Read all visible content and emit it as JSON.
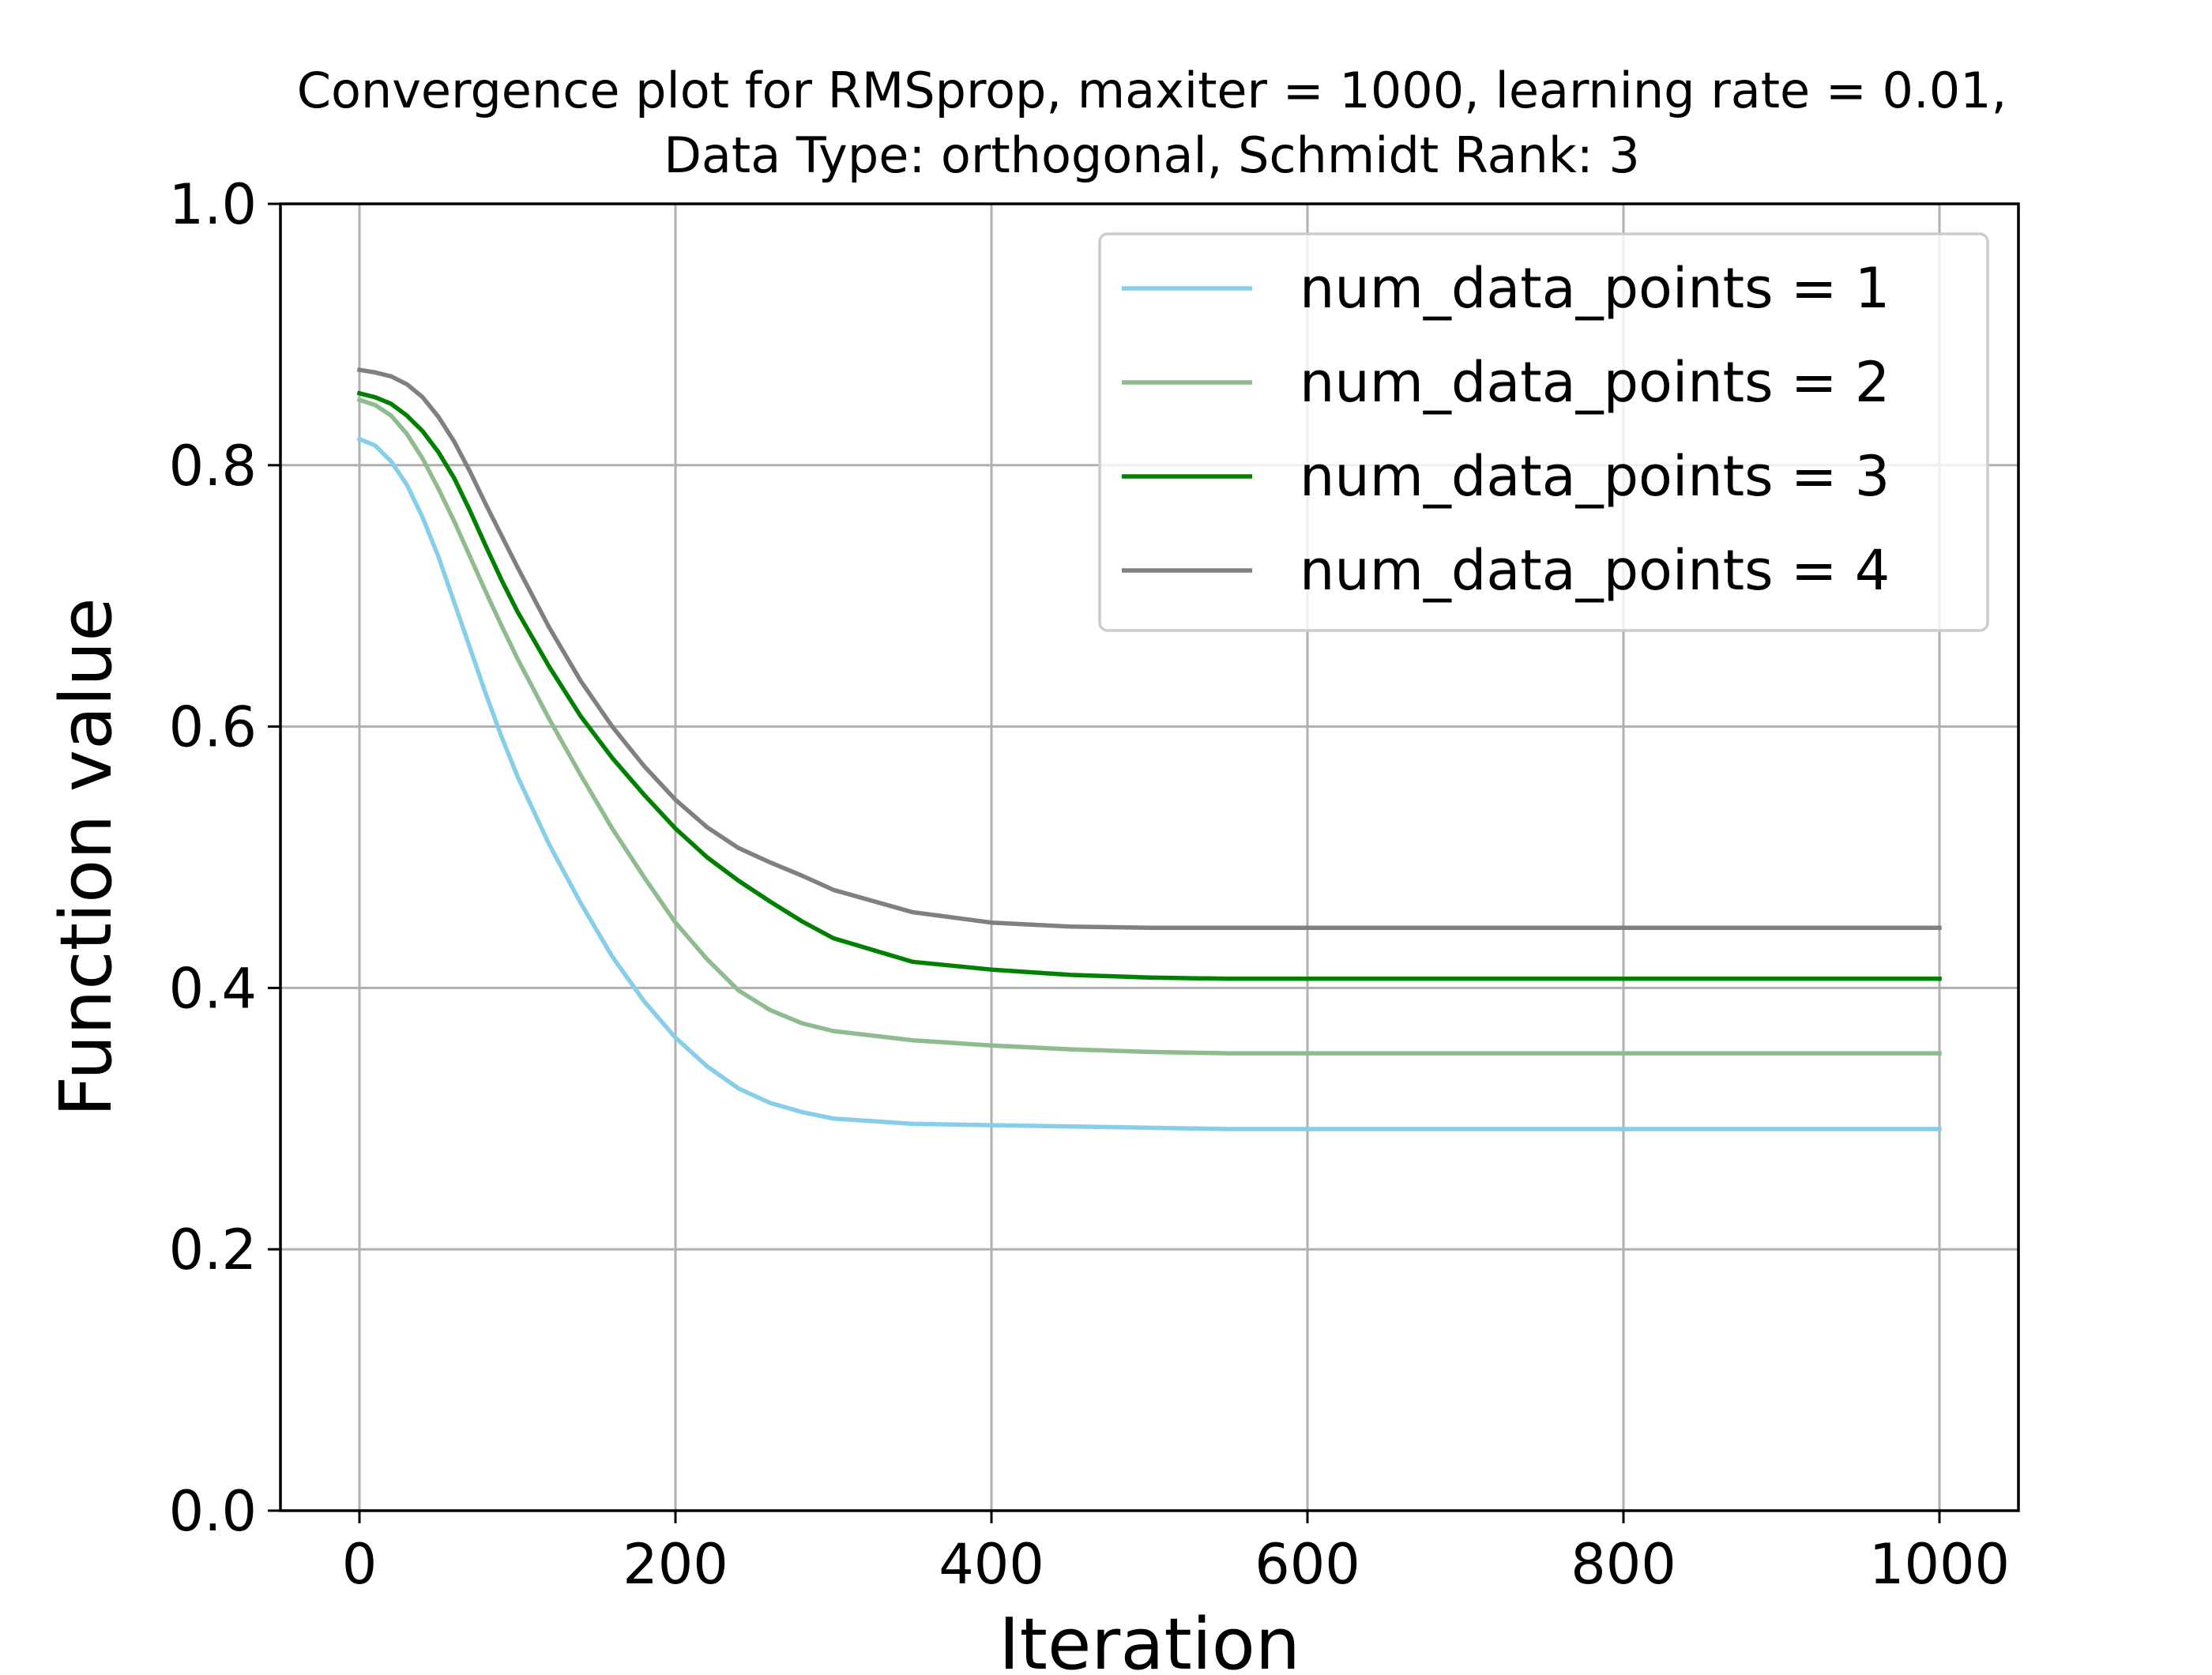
{
  "chart_data": {
    "type": "line",
    "title": [
      "Convergence plot for RMSprop, maxiter = 1000, learning rate = 0.01,",
      "Data Type: orthogonal, Schmidt Rank: 3"
    ],
    "xlabel": "Iteration",
    "ylabel": "Function value",
    "xlim": [
      -50,
      1050
    ],
    "ylim": [
      0.0,
      1.0
    ],
    "xticks": [
      0,
      200,
      400,
      600,
      800,
      1000
    ],
    "xtick_labels": [
      "0",
      "200",
      "400",
      "600",
      "800",
      "1000"
    ],
    "yticks": [
      0.0,
      0.2,
      0.4,
      0.6,
      0.8,
      1.0
    ],
    "ytick_labels": [
      "0.0",
      "0.2",
      "0.4",
      "0.6",
      "0.8",
      "1.0"
    ],
    "grid": true,
    "legend_position": "top-right",
    "x": [
      0,
      10,
      20,
      30,
      40,
      50,
      60,
      70,
      80,
      90,
      100,
      120,
      140,
      160,
      180,
      200,
      220,
      240,
      260,
      280,
      300,
      350,
      400,
      450,
      500,
      550,
      600,
      700,
      800,
      900,
      1000
    ],
    "series": [
      {
        "name": "num_data_points = 1",
        "color": "#87ceeb",
        "values": [
          0.82,
          0.815,
          0.803,
          0.785,
          0.76,
          0.73,
          0.695,
          0.66,
          0.625,
          0.592,
          0.562,
          0.51,
          0.465,
          0.424,
          0.39,
          0.362,
          0.34,
          0.323,
          0.312,
          0.305,
          0.3,
          0.296,
          0.295,
          0.294,
          0.293,
          0.292,
          0.292,
          0.292,
          0.292,
          0.292,
          0.292
        ]
      },
      {
        "name": "num_data_points = 2",
        "color": "#8fbc8f",
        "values": [
          0.85,
          0.846,
          0.838,
          0.824,
          0.805,
          0.782,
          0.757,
          0.73,
          0.703,
          0.677,
          0.652,
          0.606,
          0.563,
          0.522,
          0.485,
          0.45,
          0.422,
          0.398,
          0.383,
          0.373,
          0.367,
          0.36,
          0.356,
          0.353,
          0.351,
          0.35,
          0.35,
          0.35,
          0.35,
          0.35,
          0.35
        ]
      },
      {
        "name": "num_data_points = 3",
        "color": "#008000",
        "values": [
          0.855,
          0.852,
          0.847,
          0.838,
          0.826,
          0.81,
          0.79,
          0.765,
          0.738,
          0.712,
          0.688,
          0.646,
          0.608,
          0.576,
          0.548,
          0.522,
          0.5,
          0.482,
          0.466,
          0.451,
          0.438,
          0.42,
          0.414,
          0.41,
          0.408,
          0.407,
          0.407,
          0.407,
          0.407,
          0.407,
          0.407
        ]
      },
      {
        "name": "num_data_points = 4",
        "color": "#808080",
        "values": [
          0.873,
          0.871,
          0.868,
          0.862,
          0.852,
          0.837,
          0.818,
          0.795,
          0.77,
          0.746,
          0.722,
          0.676,
          0.635,
          0.6,
          0.57,
          0.544,
          0.523,
          0.507,
          0.496,
          0.486,
          0.475,
          0.458,
          0.45,
          0.447,
          0.446,
          0.446,
          0.446,
          0.446,
          0.446,
          0.446,
          0.446
        ]
      }
    ]
  }
}
